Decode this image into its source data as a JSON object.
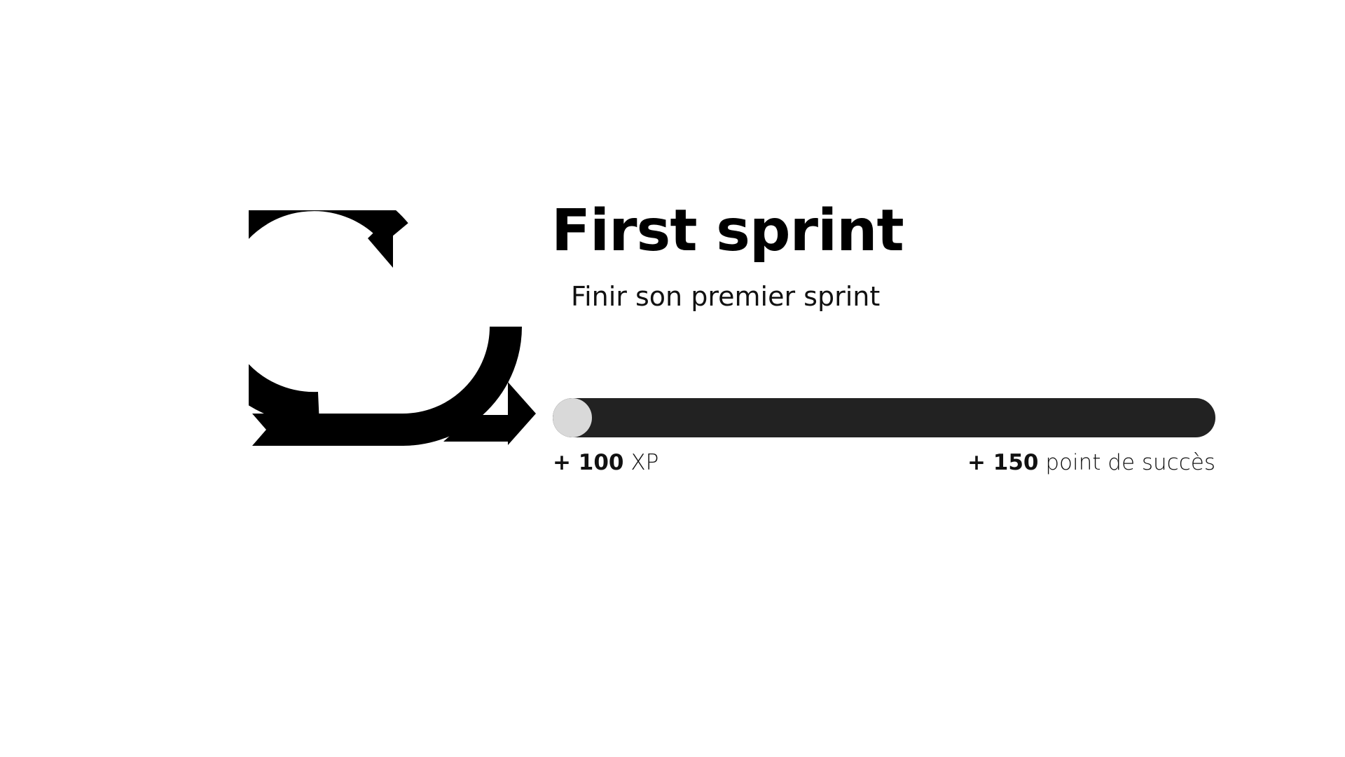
{
  "achievement": {
    "icon": "sprint-cycle-icon",
    "title": "First sprint",
    "description": "Finir son premier sprint",
    "progress_fraction": 0.057,
    "rewards": {
      "xp_amount": "+ 100",
      "xp_unit": "XP",
      "points_amount": "+ 150",
      "points_unit": "point de succès"
    }
  },
  "colors": {
    "background": "#ffffff",
    "text": "#000000",
    "progress_track": "#222222",
    "progress_fill": "#d9d9d9"
  }
}
